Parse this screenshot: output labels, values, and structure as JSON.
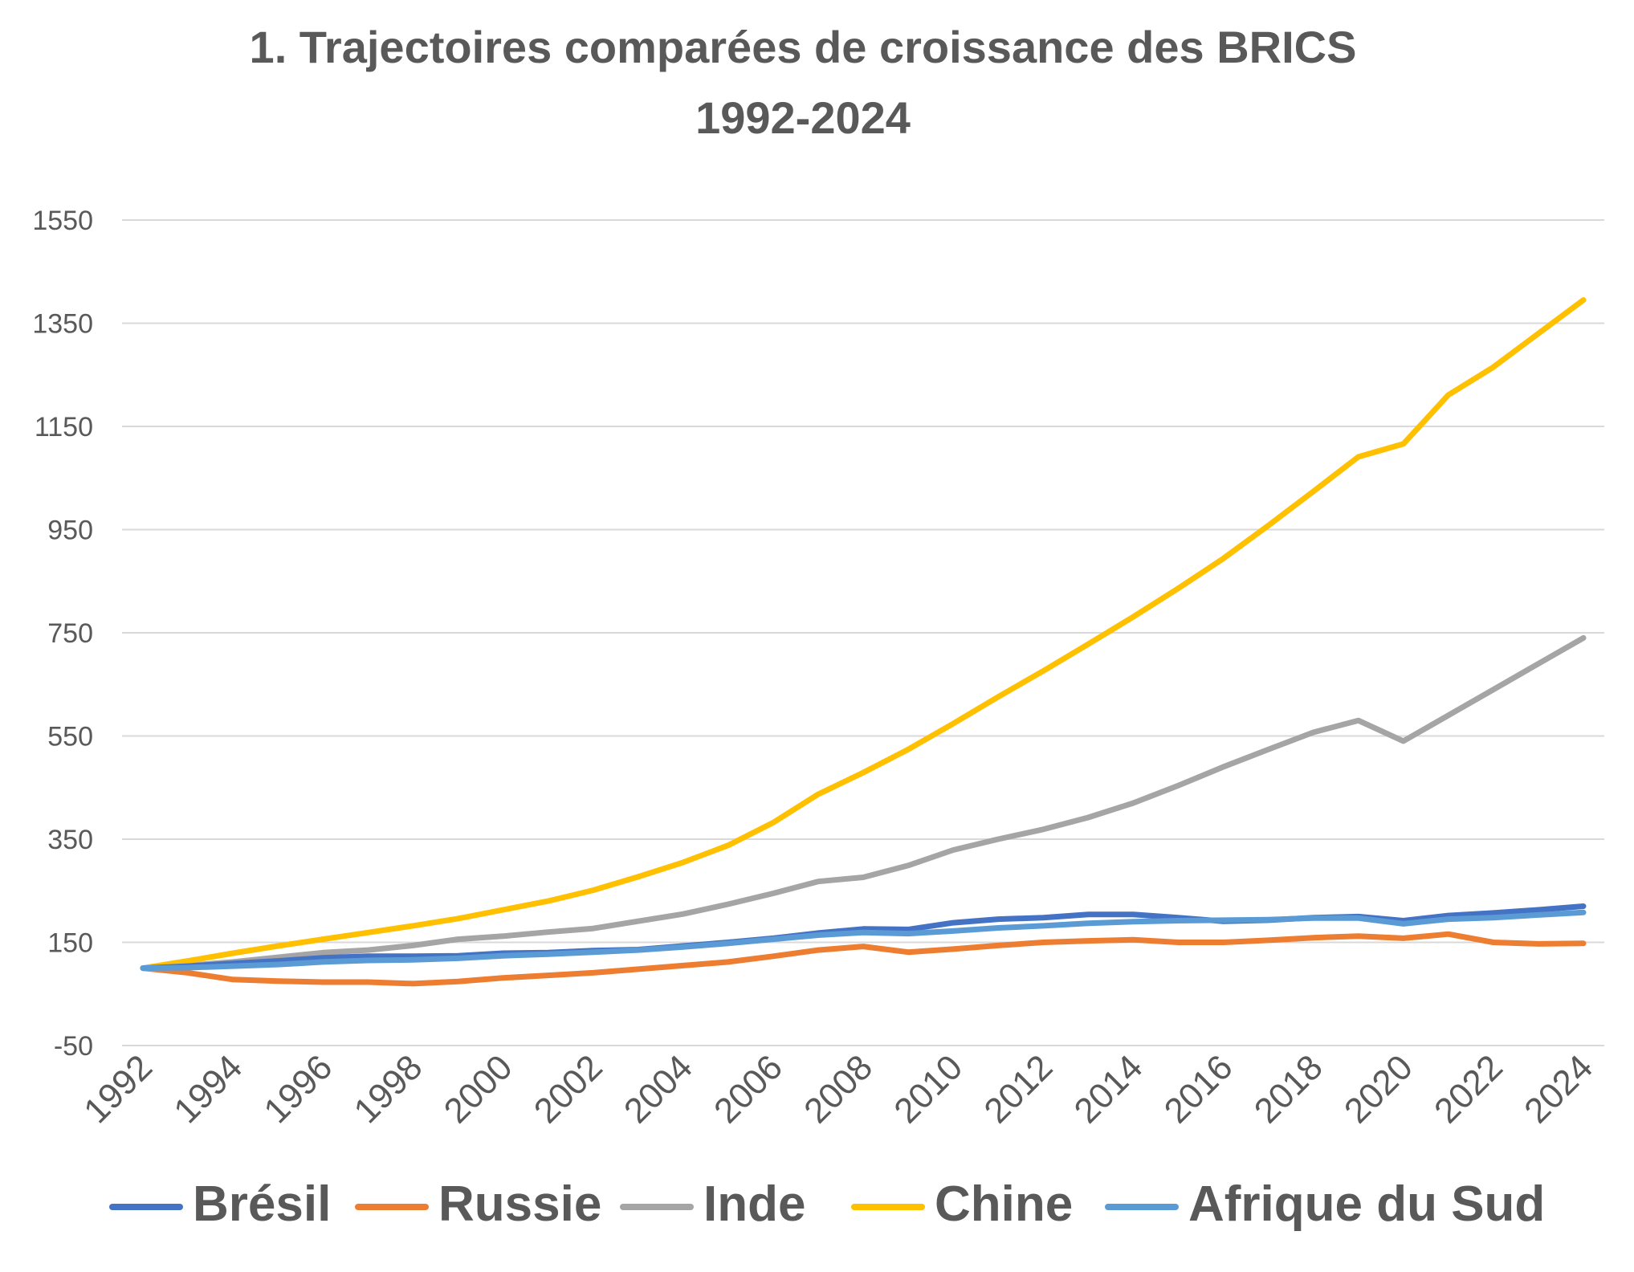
{
  "chart_data": {
    "type": "line",
    "title_lines": [
      "1. Trajectoires comparées de croissance des BRICS",
      "1992-2024"
    ],
    "x": [
      1992,
      1993,
      1994,
      1995,
      1996,
      1997,
      1998,
      1999,
      2000,
      2001,
      2002,
      2003,
      2004,
      2005,
      2006,
      2007,
      2008,
      2009,
      2010,
      2011,
      2012,
      2013,
      2014,
      2015,
      2016,
      2017,
      2018,
      2019,
      2020,
      2021,
      2022,
      2023,
      2024
    ],
    "x_tick_labels": [
      "1992",
      "1994",
      "1996",
      "1998",
      "2000",
      "2002",
      "2004",
      "2006",
      "2008",
      "2010",
      "2012",
      "2014",
      "2016",
      "2018",
      "2020",
      "2022",
      "2024"
    ],
    "y_ticks": [
      -50,
      150,
      350,
      550,
      750,
      950,
      1150,
      1350,
      1550
    ],
    "y_tick_labels": [
      "-50",
      "150",
      "350",
      "550",
      "750",
      "950",
      "1150",
      "1350",
      "1550"
    ],
    "ylim": [
      -50,
      1550
    ],
    "grid": true,
    "legend_position": "bottom",
    "series": [
      {
        "name": "Brésil",
        "color": "#4472C4",
        "values": [
          100,
          104,
          109,
          114,
          120,
          123,
          123,
          124,
          129,
          130,
          134,
          136,
          143,
          150,
          158,
          168,
          176,
          175,
          188,
          195,
          198,
          204,
          204,
          198,
          191,
          193,
          198,
          200,
          192,
          202,
          207,
          213,
          220
        ]
      },
      {
        "name": "Russie",
        "color": "#ED7D31",
        "values": [
          100,
          91,
          78,
          75,
          73,
          73,
          70,
          74,
          81,
          86,
          91,
          98,
          105,
          112,
          123,
          135,
          142,
          131,
          137,
          144,
          150,
          153,
          155,
          150,
          150,
          154,
          159,
          162,
          158,
          166,
          150,
          147,
          148
        ]
      },
      {
        "name": "Inde",
        "color": "#A5A5A5",
        "values": [
          100,
          105,
          112,
          121,
          130,
          135,
          144,
          156,
          162,
          170,
          177,
          191,
          205,
          224,
          245,
          268,
          276,
          299,
          329,
          350,
          369,
          392,
          420,
          454,
          490,
          524,
          557,
          580,
          540,
          590,
          640,
          690,
          740
        ]
      },
      {
        "name": "Chine",
        "color": "#FFC000",
        "values": [
          100,
          114,
          129,
          143,
          156,
          169,
          182,
          196,
          213,
          230,
          251,
          277,
          305,
          338,
          382,
          437,
          479,
          524,
          574,
          626,
          676,
          728,
          781,
          836,
          894,
          958,
          1024,
          1091,
          1116,
          1211,
          1265,
          1330,
          1395
        ]
      },
      {
        "name": "Afrique du Sud",
        "color": "#5B9BD5",
        "values": [
          100,
          101,
          104,
          107,
          112,
          115,
          116,
          119,
          124,
          127,
          131,
          135,
          141,
          148,
          156,
          164,
          169,
          167,
          172,
          178,
          182,
          187,
          190,
          192,
          193,
          194,
          197,
          197,
          186,
          195,
          198,
          203,
          208
        ]
      }
    ]
  }
}
